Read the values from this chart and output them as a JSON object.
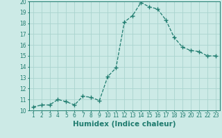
{
  "x": [
    1,
    2,
    3,
    4,
    5,
    6,
    7,
    8,
    9,
    10,
    11,
    12,
    13,
    14,
    15,
    16,
    17,
    18,
    19,
    20,
    21,
    22,
    23
  ],
  "y": [
    10.3,
    10.5,
    10.5,
    11.0,
    10.8,
    10.5,
    11.3,
    11.2,
    10.9,
    13.1,
    13.9,
    18.1,
    18.7,
    19.9,
    19.5,
    19.3,
    18.3,
    16.7,
    15.8,
    15.5,
    15.4,
    15.0,
    15.0
  ],
  "xlabel": "Humidex (Indice chaleur)",
  "ylim": [
    10,
    20
  ],
  "xlim": [
    0.5,
    23.5
  ],
  "yticks": [
    10,
    11,
    12,
    13,
    14,
    15,
    16,
    17,
    18,
    19,
    20
  ],
  "xticks": [
    1,
    2,
    3,
    4,
    5,
    6,
    7,
    8,
    9,
    10,
    11,
    12,
    13,
    14,
    15,
    16,
    17,
    18,
    19,
    20,
    21,
    22,
    23
  ],
  "line_color": "#1e7b6e",
  "marker": "+",
  "bg_color": "#cceae6",
  "grid_color": "#aad4cf",
  "font_color": "#1e7b6e",
  "tick_fontsize": 5.5,
  "xlabel_fontsize": 7.5
}
